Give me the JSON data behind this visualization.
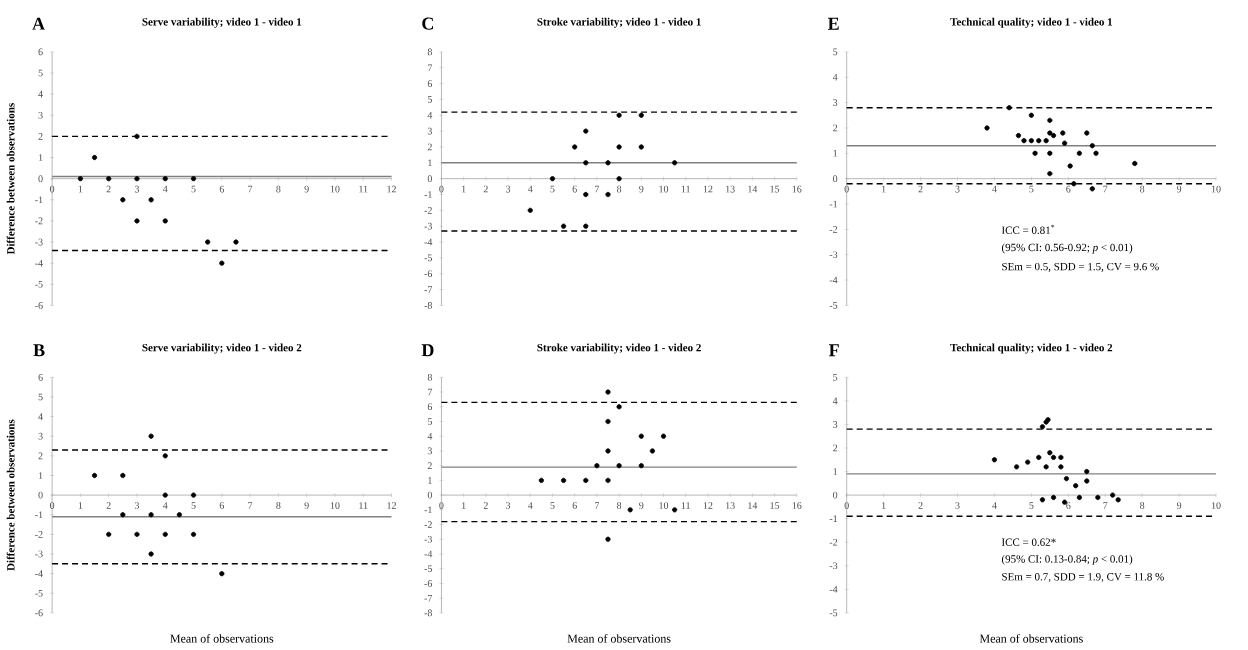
{
  "chart_data": [
    {
      "type": "scatter",
      "title": "Serve variability; video 1 - video 1",
      "ylabel": "Difference between observations",
      "annotations": [
        "A"
      ],
      "xlim": [
        0,
        12
      ],
      "xticks": [
        0,
        1,
        2,
        3,
        4,
        5,
        6,
        7,
        8,
        9,
        10,
        11,
        12
      ],
      "ylim": [
        -6,
        6
      ],
      "yticks": [
        -6,
        -5,
        -4,
        -3,
        -2,
        -1,
        0,
        1,
        2,
        3,
        4,
        5,
        6
      ],
      "marker": "circle",
      "series": [
        {
          "color": "#000000",
          "x": [
            1,
            1.5,
            2,
            2.5,
            3,
            3,
            3,
            3.5,
            4,
            4,
            5,
            5.5,
            6,
            6.5
          ],
          "values": [
            0,
            1,
            0,
            -1,
            2,
            0,
            -2,
            -1,
            0,
            -2,
            0,
            -3,
            -4,
            -3
          ]
        }
      ],
      "ref_lines": [
        {
          "axis": "y",
          "value": 2,
          "line_style": "dashed",
          "color": "#000000"
        },
        {
          "axis": "y",
          "value": 0.1,
          "line_style": "solid",
          "color": "#808080"
        },
        {
          "axis": "y",
          "value": -3.4,
          "line_style": "dashed",
          "color": "#000000"
        }
      ]
    },
    {
      "type": "scatter",
      "title": "Stroke variability; video 1 - video 1",
      "annotations": [
        "C"
      ],
      "xlim": [
        0,
        16
      ],
      "xticks": [
        0,
        1,
        2,
        3,
        4,
        5,
        6,
        7,
        8,
        9,
        10,
        11,
        12,
        13,
        14,
        15,
        16
      ],
      "ylim": [
        -8,
        8
      ],
      "yticks": [
        -8,
        -7,
        -6,
        -5,
        -4,
        -3,
        -2,
        -1,
        0,
        1,
        2,
        3,
        4,
        5,
        6,
        7,
        8
      ],
      "marker": "circle",
      "series": [
        {
          "color": "#000000",
          "x": [
            4,
            5,
            5.5,
            6,
            6.5,
            6.5,
            6.5,
            6.5,
            7.5,
            7.5,
            8,
            8,
            8,
            9,
            9,
            10.5
          ],
          "values": [
            -2,
            0,
            -3,
            2,
            3,
            1,
            -1,
            -3,
            1,
            -1,
            4,
            2,
            0,
            4,
            2,
            1
          ]
        }
      ],
      "ref_lines": [
        {
          "axis": "y",
          "value": 4.2,
          "line_style": "dashed",
          "color": "#000000"
        },
        {
          "axis": "y",
          "value": 1.0,
          "line_style": "solid",
          "color": "#808080"
        },
        {
          "axis": "y",
          "value": -3.3,
          "line_style": "dashed",
          "color": "#000000"
        }
      ]
    },
    {
      "type": "scatter",
      "title": "Technical quality; video 1 - video 1",
      "annotations": [
        "E",
        "ICC = 0.81$^{*}$",
        "(95% CI: 0.56-0.92; *p* < 0.01)",
        "SEm = 0.5, SDD = 1.5, CV = 9.6 %"
      ],
      "xlim": [
        0,
        10
      ],
      "xticks": [
        0,
        1,
        2,
        3,
        4,
        5,
        6,
        7,
        8,
        9,
        10
      ],
      "ylim": [
        -5,
        5
      ],
      "yticks": [
        -5,
        -4,
        -3,
        -2,
        -1,
        0,
        1,
        2,
        3,
        4,
        5
      ],
      "marker": "circle",
      "series": [
        {
          "color": "#000000",
          "x": [
            3.8,
            4.4,
            5.0,
            4.65,
            4.8,
            5.0,
            5.2,
            5.4,
            5.1,
            5.5,
            5.5,
            5.6,
            5.5,
            5.5,
            5.85,
            5.9,
            6.05,
            6.15,
            6.3,
            6.5,
            6.65,
            6.75,
            6.65,
            7.8
          ],
          "values": [
            2.0,
            2.8,
            2.5,
            1.7,
            1.5,
            1.5,
            1.5,
            1.5,
            1.0,
            2.3,
            1.8,
            1.7,
            1.0,
            0.2,
            1.8,
            1.4,
            0.5,
            -0.2,
            1.0,
            1.8,
            1.3,
            1.0,
            -0.4,
            0.6
          ]
        }
      ],
      "ref_lines": [
        {
          "axis": "y",
          "value": 2.8,
          "line_style": "dashed",
          "color": "#000000"
        },
        {
          "axis": "y",
          "value": 1.3,
          "line_style": "solid",
          "color": "#808080"
        },
        {
          "axis": "y",
          "value": -0.2,
          "line_style": "dashed",
          "color": "#000000"
        }
      ]
    },
    {
      "type": "scatter",
      "title": "Serve variability; video 1 - video 2",
      "xlabel": "Mean of observations",
      "ylabel": "Difference between observations",
      "annotations": [
        "B"
      ],
      "xlim": [
        0,
        12
      ],
      "xticks": [
        0,
        1,
        2,
        3,
        4,
        5,
        6,
        7,
        8,
        9,
        10,
        11,
        12
      ],
      "ylim": [
        -6,
        6
      ],
      "yticks": [
        -6,
        -5,
        -4,
        -3,
        -2,
        -1,
        0,
        1,
        2,
        3,
        4,
        5,
        6
      ],
      "marker": "circle",
      "series": [
        {
          "color": "#000000",
          "x": [
            1.5,
            2,
            2.5,
            2.5,
            3,
            3.5,
            3.5,
            3.5,
            4,
            4,
            4,
            4.5,
            5,
            5,
            6
          ],
          "values": [
            1,
            -2,
            1,
            -1,
            -2,
            3,
            -1,
            -3,
            2,
            0,
            -2,
            -1,
            0,
            -2,
            -4
          ]
        }
      ],
      "ref_lines": [
        {
          "axis": "y",
          "value": 2.3,
          "line_style": "dashed",
          "color": "#000000"
        },
        {
          "axis": "y",
          "value": -1.1,
          "line_style": "solid",
          "color": "#808080"
        },
        {
          "axis": "y",
          "value": -3.5,
          "line_style": "dashed",
          "color": "#000000"
        }
      ]
    },
    {
      "type": "scatter",
      "title": "Stroke variability; video 1 - video 2",
      "xlabel": "Mean of observations",
      "annotations": [
        "D"
      ],
      "xlim": [
        0,
        16
      ],
      "xticks": [
        0,
        1,
        2,
        3,
        4,
        5,
        6,
        7,
        8,
        9,
        10,
        11,
        12,
        13,
        14,
        15,
        16
      ],
      "ylim": [
        -8,
        8
      ],
      "yticks": [
        -8,
        -7,
        -6,
        -5,
        -4,
        -3,
        -2,
        -1,
        0,
        1,
        2,
        3,
        4,
        5,
        6,
        7,
        8
      ],
      "marker": "circle",
      "series": [
        {
          "color": "#000000",
          "x": [
            4.5,
            5.5,
            6.5,
            7,
            7.5,
            7.5,
            7.5,
            7.5,
            7.5,
            8,
            8,
            8.5,
            9,
            9,
            9.5,
            10,
            10.5
          ],
          "values": [
            1,
            1,
            1,
            2,
            7,
            5,
            3,
            1,
            -3,
            6,
            2,
            -1,
            4,
            2,
            3,
            4,
            -1
          ]
        }
      ],
      "ref_lines": [
        {
          "axis": "y",
          "value": 6.3,
          "line_style": "dashed",
          "color": "#000000"
        },
        {
          "axis": "y",
          "value": 1.9,
          "line_style": "solid",
          "color": "#808080"
        },
        {
          "axis": "y",
          "value": -1.8,
          "line_style": "dashed",
          "color": "#000000"
        }
      ]
    },
    {
      "type": "scatter",
      "title": "Technical quality; video 1 - video 2",
      "xlabel": "Mean of observations",
      "annotations": [
        "F",
        "ICC = 0.62*",
        "(95% CI: 0.13-0.84; *p* < 0.01)",
        "SEm = 0.7, SDD = 1.9, CV = 11.8 %"
      ],
      "xlim": [
        0,
        10
      ],
      "xticks": [
        0,
        1,
        2,
        3,
        4,
        5,
        6,
        7,
        8,
        9,
        10
      ],
      "ylim": [
        -5,
        5
      ],
      "yticks": [
        -5,
        -4,
        -3,
        -2,
        -1,
        0,
        1,
        2,
        3,
        4,
        5
      ],
      "marker": "circle",
      "series": [
        {
          "color": "#000000",
          "x": [
            4.0,
            4.6,
            4.9,
            5.2,
            5.3,
            5.4,
            5.45,
            5.4,
            5.5,
            5.6,
            5.8,
            5.8,
            5.95,
            6.2,
            6.5,
            6.5,
            5.3,
            5.6,
            5.9,
            6.3,
            6.8,
            7.2,
            7.35
          ],
          "values": [
            1.5,
            1.2,
            1.4,
            1.6,
            2.9,
            3.1,
            3.2,
            1.2,
            1.8,
            1.6,
            1.6,
            1.2,
            0.7,
            0.4,
            1.0,
            0.6,
            -0.2,
            -0.1,
            -0.3,
            -0.1,
            -0.1,
            0.0,
            -0.2
          ]
        }
      ],
      "ref_lines": [
        {
          "axis": "y",
          "value": 2.8,
          "line_style": "dashed",
          "color": "#000000"
        },
        {
          "axis": "y",
          "value": 0.9,
          "line_style": "solid",
          "color": "#808080"
        },
        {
          "axis": "y",
          "value": -0.9,
          "line_style": "dashed",
          "color": "#000000"
        }
      ]
    }
  ]
}
